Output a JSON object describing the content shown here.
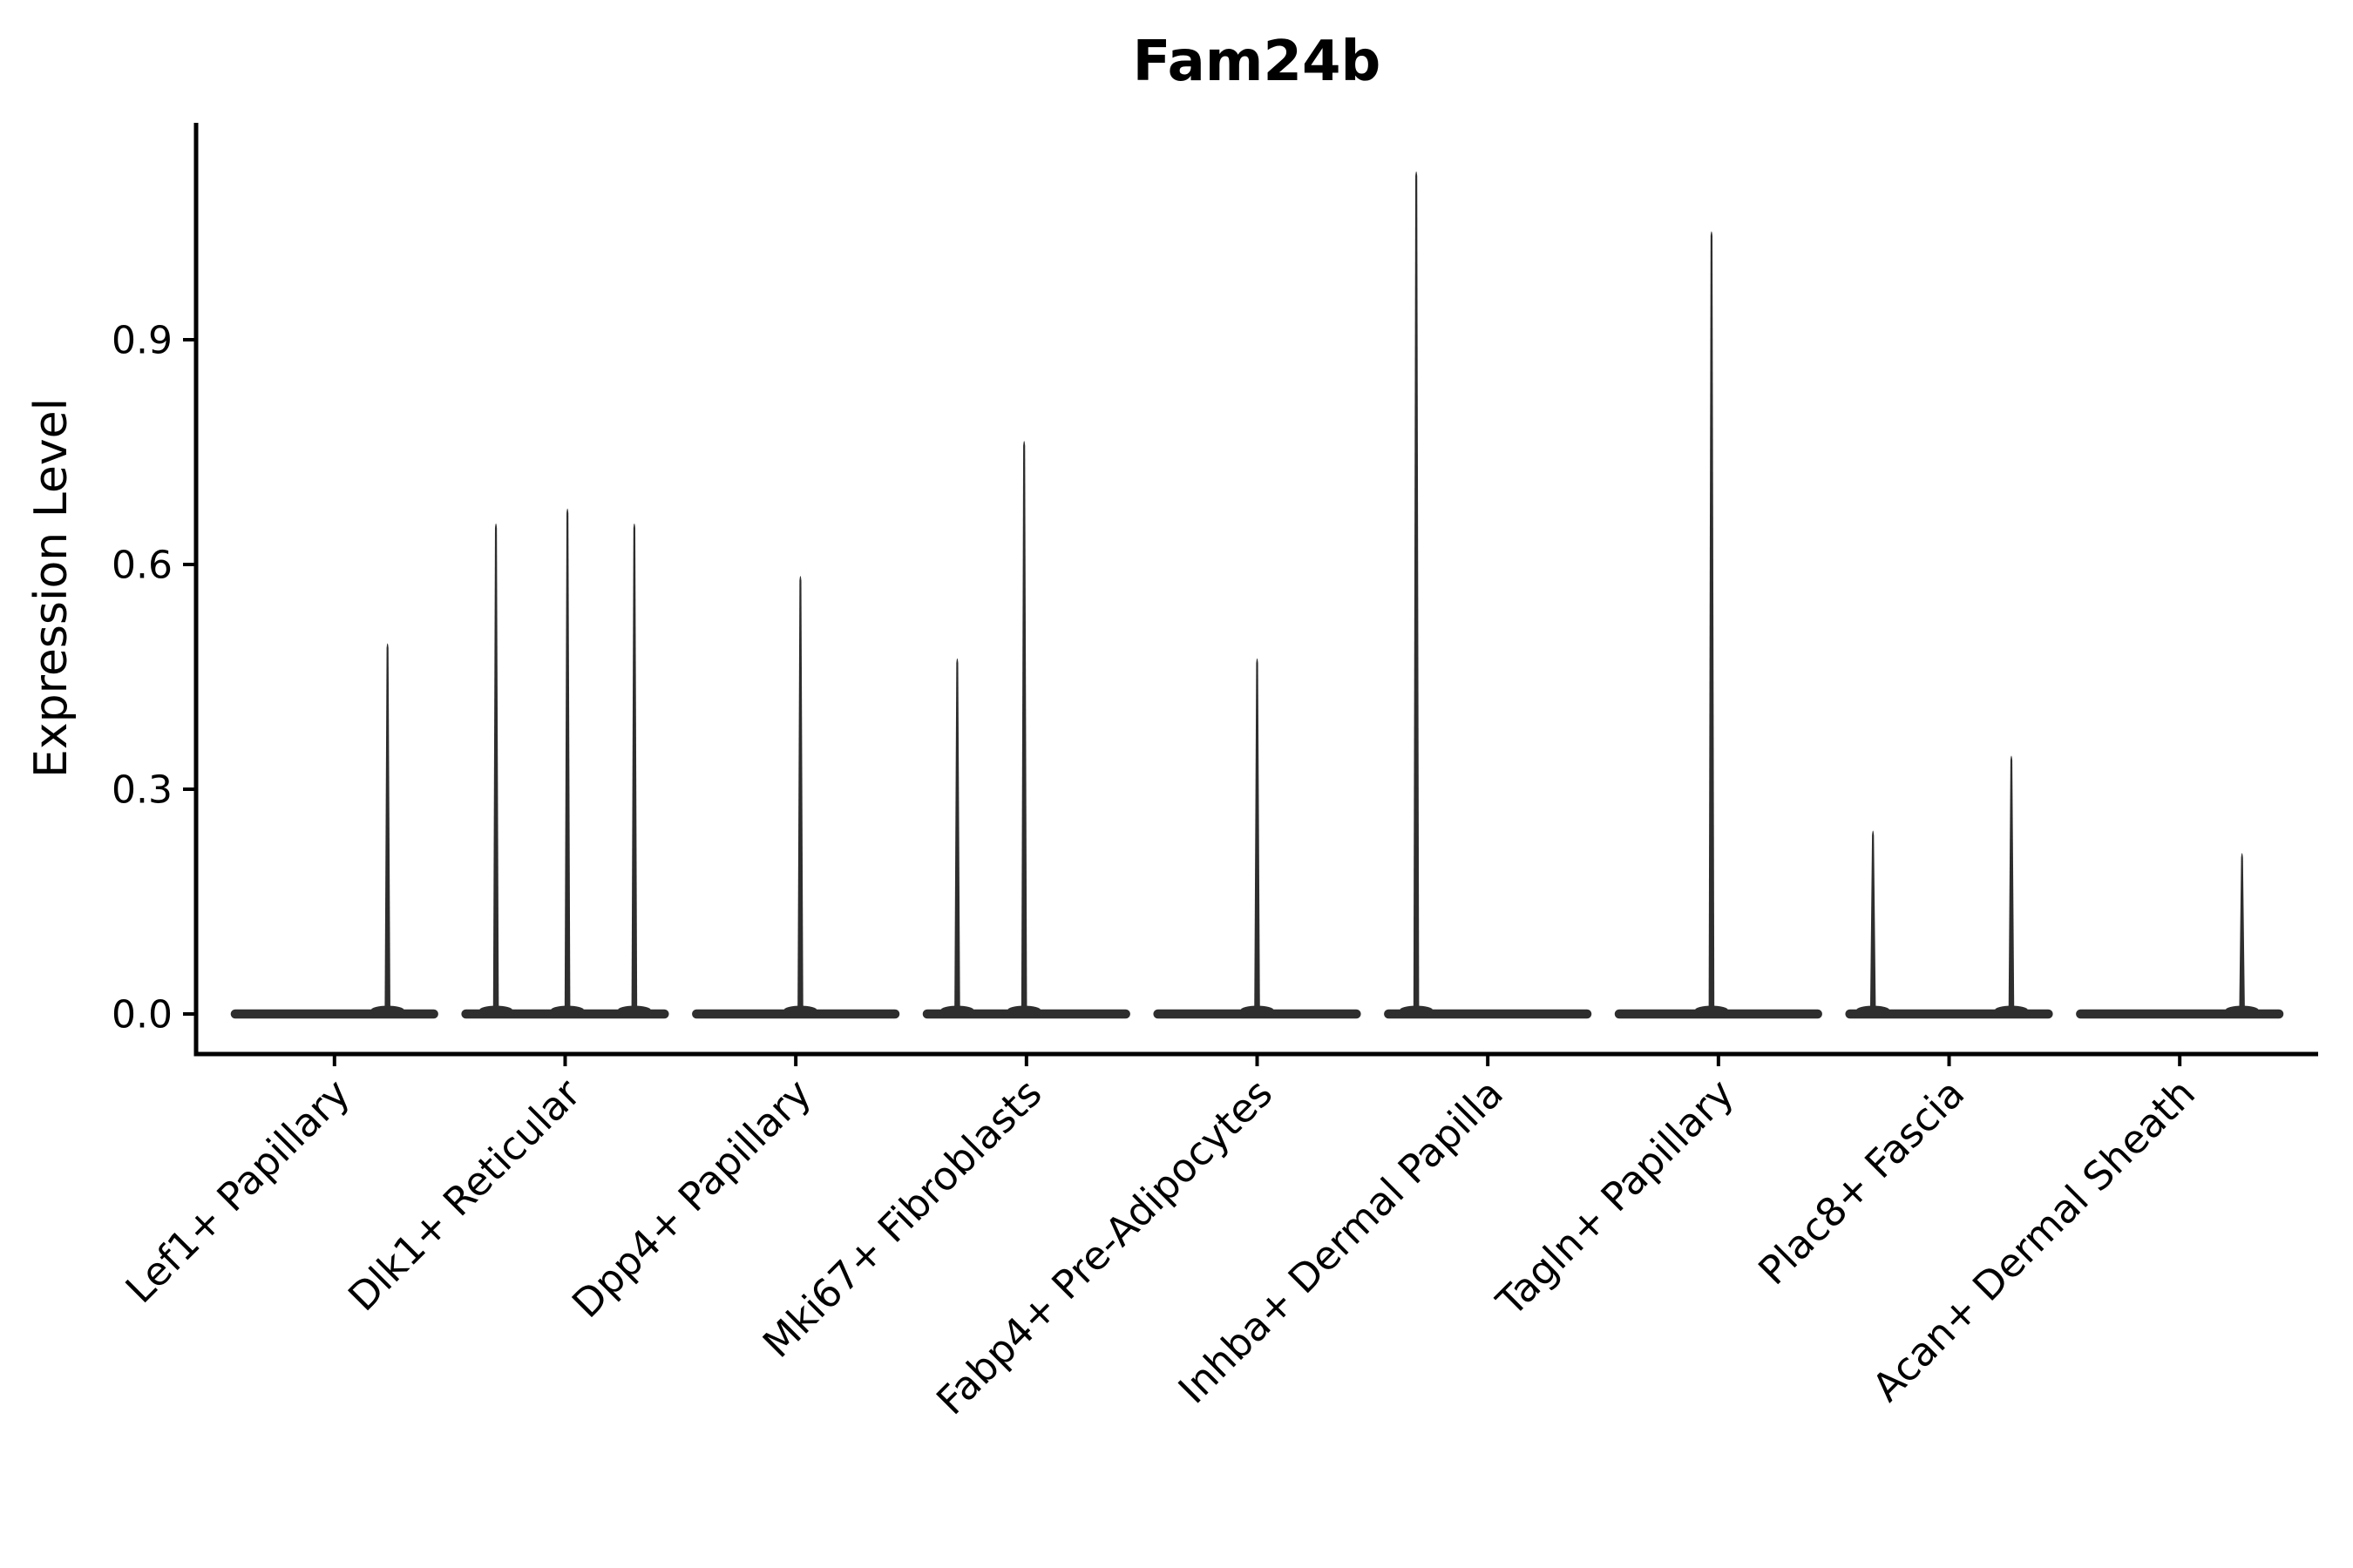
{
  "chart_data": {
    "type": "violin",
    "title": "Fam24b",
    "ylabel": "Expression Level",
    "xlabel": "",
    "grid": false,
    "legend": "none",
    "background": "#ffffff",
    "axis_color": "#000000",
    "violin_color": "#2e2e2e",
    "ylim": [
      0,
      1.19
    ],
    "yticks": [
      "0.0",
      "0.3",
      "0.6",
      "0.9"
    ],
    "categories": [
      "Lef1+ Papillary",
      "Dlk1+ Reticular",
      "Dpp4+ Papillary",
      "Mki67+ Fibroblasts",
      "Fabp4+ Pre-Adipocytes",
      "Inhba+ Dermal Papilla",
      "Tagln+ Papillary",
      "Plac8+ Fascia",
      "Acan+ Dermal Sheath"
    ],
    "violin_width": 0.9,
    "series": [
      {
        "name": "Lef1+ Papillary",
        "zero_bulk": true,
        "spikes": [
          {
            "offset": 0.23,
            "value": 0.5
          }
        ]
      },
      {
        "name": "Dlk1+ Reticular",
        "zero_bulk": true,
        "spikes": [
          {
            "offset": -0.3,
            "value": 0.66
          },
          {
            "offset": 0.01,
            "value": 0.68
          },
          {
            "offset": 0.3,
            "value": 0.66
          }
        ]
      },
      {
        "name": "Dpp4+ Papillary",
        "zero_bulk": true,
        "spikes": [
          {
            "offset": 0.02,
            "value": 0.59
          }
        ]
      },
      {
        "name": "Mki67+ Fibroblasts",
        "zero_bulk": true,
        "spikes": [
          {
            "offset": -0.3,
            "value": 0.48
          },
          {
            "offset": -0.01,
            "value": 0.77
          }
        ]
      },
      {
        "name": "Fabp4+ Pre-Adipocytes",
        "zero_bulk": true,
        "spikes": [
          {
            "offset": 0.0,
            "value": 0.48
          }
        ]
      },
      {
        "name": "Inhba+ Dermal Papilla",
        "zero_bulk": true,
        "spikes": [
          {
            "offset": -0.31,
            "value": 1.13
          }
        ]
      },
      {
        "name": "Tagln+ Papillary",
        "zero_bulk": true,
        "spikes": [
          {
            "offset": -0.03,
            "value": 1.05
          }
        ]
      },
      {
        "name": "Plac8+ Fascia",
        "zero_bulk": true,
        "spikes": [
          {
            "offset": -0.33,
            "value": 0.25
          },
          {
            "offset": 0.27,
            "value": 0.35
          }
        ]
      },
      {
        "name": "Acan+ Dermal Sheath",
        "zero_bulk": true,
        "spikes": [
          {
            "offset": 0.27,
            "value": 0.22
          }
        ]
      }
    ]
  }
}
